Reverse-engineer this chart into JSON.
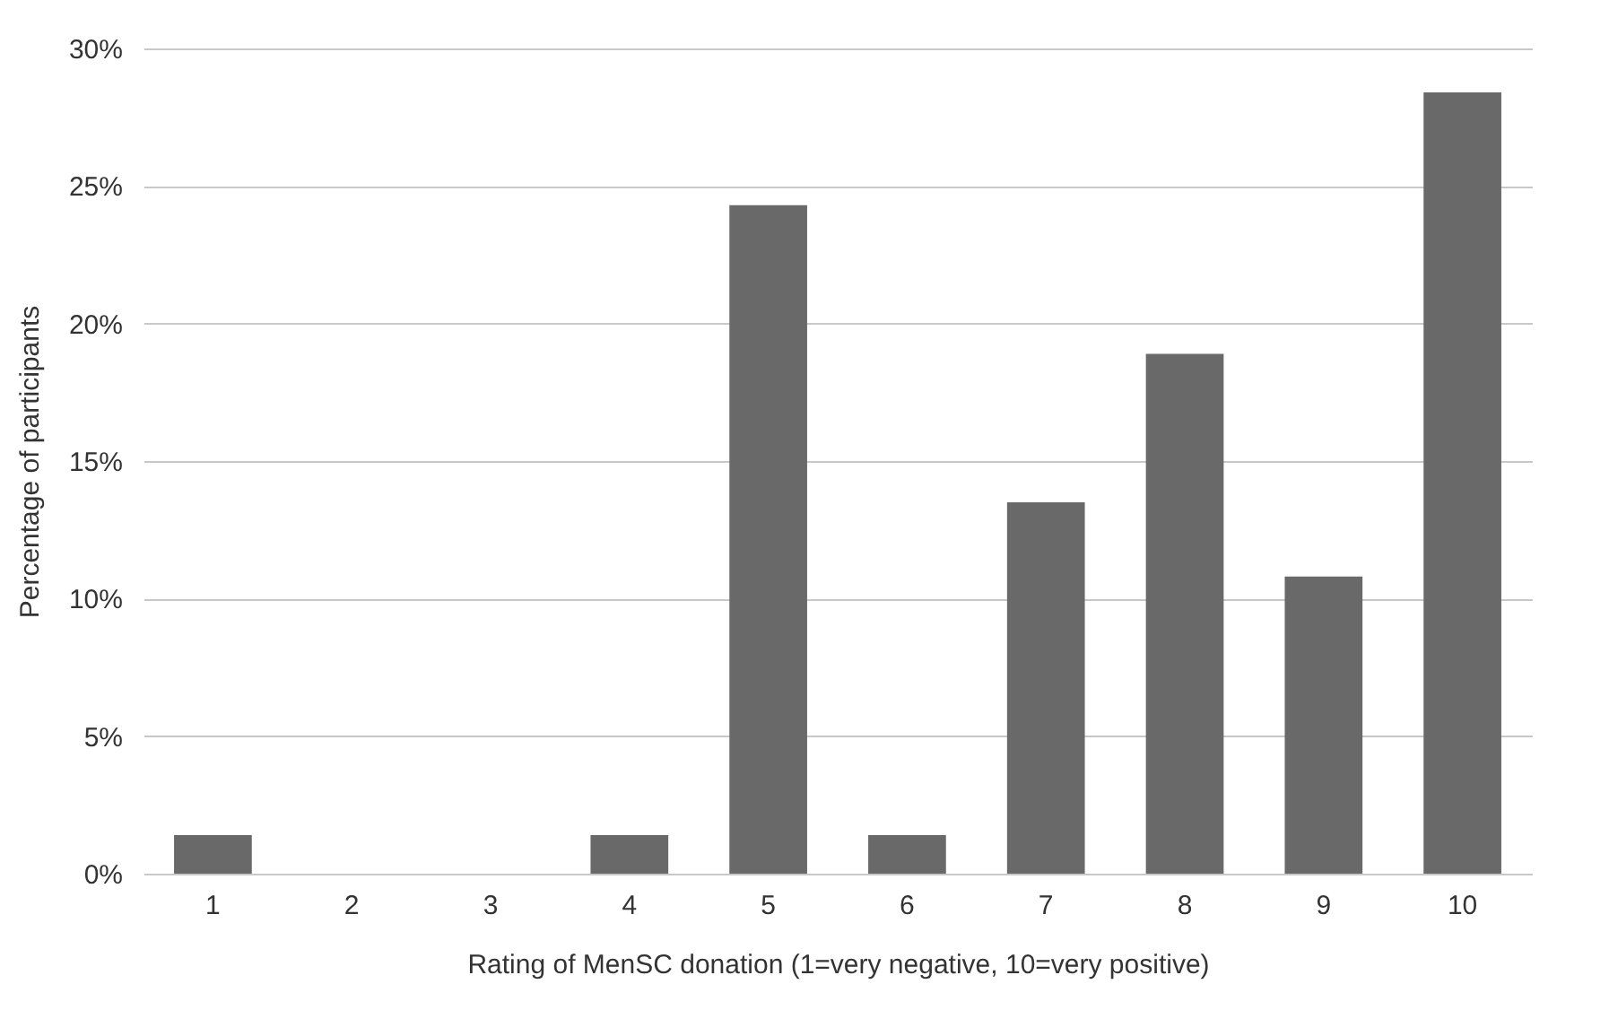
{
  "chart_data": {
    "type": "bar",
    "xlabel": "Rating of MenSC donation (1=very negative, 10=very positive)",
    "ylabel": "Percentage of participants",
    "categories": [
      "1",
      "2",
      "3",
      "4",
      "5",
      "6",
      "7",
      "8",
      "9",
      "10"
    ],
    "values": [
      1.4,
      0,
      0,
      1.4,
      24.3,
      1.4,
      13.5,
      18.9,
      10.8,
      28.4
    ],
    "color": "#696969",
    "ylim": [
      0,
      30
    ],
    "yticks": [
      {
        "value": 0,
        "label": "0%"
      },
      {
        "value": 5,
        "label": "5%"
      },
      {
        "value": 10,
        "label": "10%"
      },
      {
        "value": 15,
        "label": "15%"
      },
      {
        "value": 20,
        "label": "20%"
      },
      {
        "value": 25,
        "label": "25%"
      },
      {
        "value": 30,
        "label": "30%"
      }
    ],
    "grid": "y"
  }
}
